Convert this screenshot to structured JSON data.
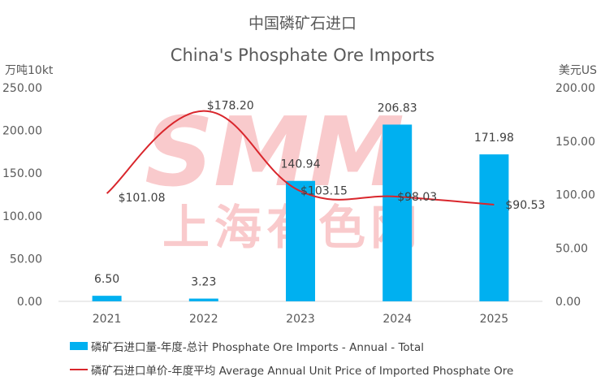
{
  "chart_data": {
    "type": "bar",
    "title": "中国磷矿石进口",
    "subtitle": "China's Phosphate Ore Imports",
    "ylabel": "万吨10kt",
    "y2label": "美元US",
    "categories": [
      "2021",
      "2022",
      "2023",
      "2024",
      "2025"
    ],
    "ylim": [
      0,
      250
    ],
    "y2lim": [
      0,
      200
    ],
    "yticks": [
      "0.00",
      "50.00",
      "100.00",
      "150.00",
      "200.00",
      "250.00"
    ],
    "y2ticks": [
      "0.00",
      "50.00",
      "100.00",
      "150.00",
      "200.00"
    ],
    "series": [
      {
        "name": "磷矿石进口量-年度-总计 Phosphate Ore Imports - Annual - Total",
        "type": "bar",
        "axis": "left",
        "values": [
          6.5,
          3.23,
          140.94,
          206.83,
          171.98
        ],
        "labels": [
          "6.50",
          "3.23",
          "140.94",
          "206.83",
          "171.98"
        ],
        "color": "#00b0f0"
      },
      {
        "name": "磷矿石进口单价-年度平均 Average Annual Unit Price of Imported Phosphate Ore",
        "type": "line",
        "axis": "right",
        "values": [
          101.08,
          178.2,
          103.15,
          98.03,
          90.53
        ],
        "labels": [
          "$101.08",
          "$178.20",
          "$103.15",
          "$98.03",
          "$90.53"
        ],
        "color": "#d9262c"
      }
    ],
    "watermark": "SMM 上海有色网",
    "legend_position": "bottom",
    "grid": false
  }
}
